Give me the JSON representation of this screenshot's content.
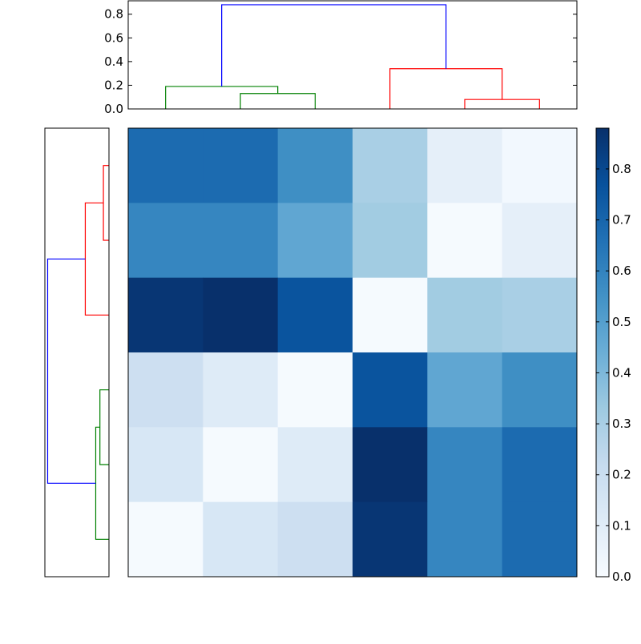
{
  "chart_data": [
    {
      "type": "heatmap",
      "title": "",
      "xlabel": "",
      "ylabel": "",
      "rows": 6,
      "cols": 6,
      "values": [
        [
          0.68,
          0.68,
          0.56,
          0.3,
          0.08,
          0.02
        ],
        [
          0.59,
          0.59,
          0.47,
          0.32,
          0.01,
          0.08
        ],
        [
          0.86,
          0.88,
          0.76,
          0.01,
          0.32,
          0.3
        ],
        [
          0.19,
          0.11,
          0.01,
          0.76,
          0.47,
          0.56
        ],
        [
          0.14,
          0.01,
          0.11,
          0.88,
          0.59,
          0.68
        ],
        [
          0.01,
          0.14,
          0.19,
          0.86,
          0.59,
          0.68
        ]
      ],
      "colormap": "Blues",
      "vmin": 0.0,
      "vmax": 0.88
    },
    {
      "type": "dendrogram",
      "orientation": "top",
      "ylim": [
        0.0,
        0.92
      ],
      "yticks": [
        "0.0",
        "0.2",
        "0.4",
        "0.6",
        "0.8"
      ],
      "ytick_values": [
        0.0,
        0.2,
        0.4,
        0.6,
        0.8
      ],
      "links": [
        {
          "leaves": [
            1,
            2
          ],
          "height": 0.13,
          "color": "#008000"
        },
        {
          "leaves": [
            0,
            1.5
          ],
          "height": 0.19,
          "color": "#008000"
        },
        {
          "leaves": [
            4,
            5
          ],
          "height": 0.08,
          "color": "#ff0000"
        },
        {
          "leaves": [
            3,
            4.5
          ],
          "height": 0.34,
          "color": "#ff0000"
        },
        {
          "leaves": [
            0.75,
            3.75
          ],
          "height": 0.88,
          "color": "#0000ff"
        }
      ]
    },
    {
      "type": "dendrogram",
      "orientation": "left",
      "links": [
        {
          "leaves": [
            0,
            1
          ],
          "height": 0.08,
          "color": "#ff0000"
        },
        {
          "leaves": [
            0.5,
            2
          ],
          "height": 0.34,
          "color": "#ff0000"
        },
        {
          "leaves": [
            3,
            4
          ],
          "height": 0.13,
          "color": "#008000"
        },
        {
          "leaves": [
            3.5,
            5
          ],
          "height": 0.19,
          "color": "#008000"
        },
        {
          "leaves": [
            1.25,
            4.25
          ],
          "height": 0.88,
          "color": "#0000ff"
        }
      ]
    },
    {
      "type": "colorbar",
      "colormap": "Blues",
      "vmin": 0.0,
      "vmax": 0.88,
      "ticks": [
        "0.0",
        "0.1",
        "0.2",
        "0.3",
        "0.4",
        "0.5",
        "0.6",
        "0.7",
        "0.8"
      ],
      "tick_values": [
        0.0,
        0.1,
        0.2,
        0.3,
        0.4,
        0.5,
        0.6,
        0.7,
        0.8
      ]
    }
  ]
}
